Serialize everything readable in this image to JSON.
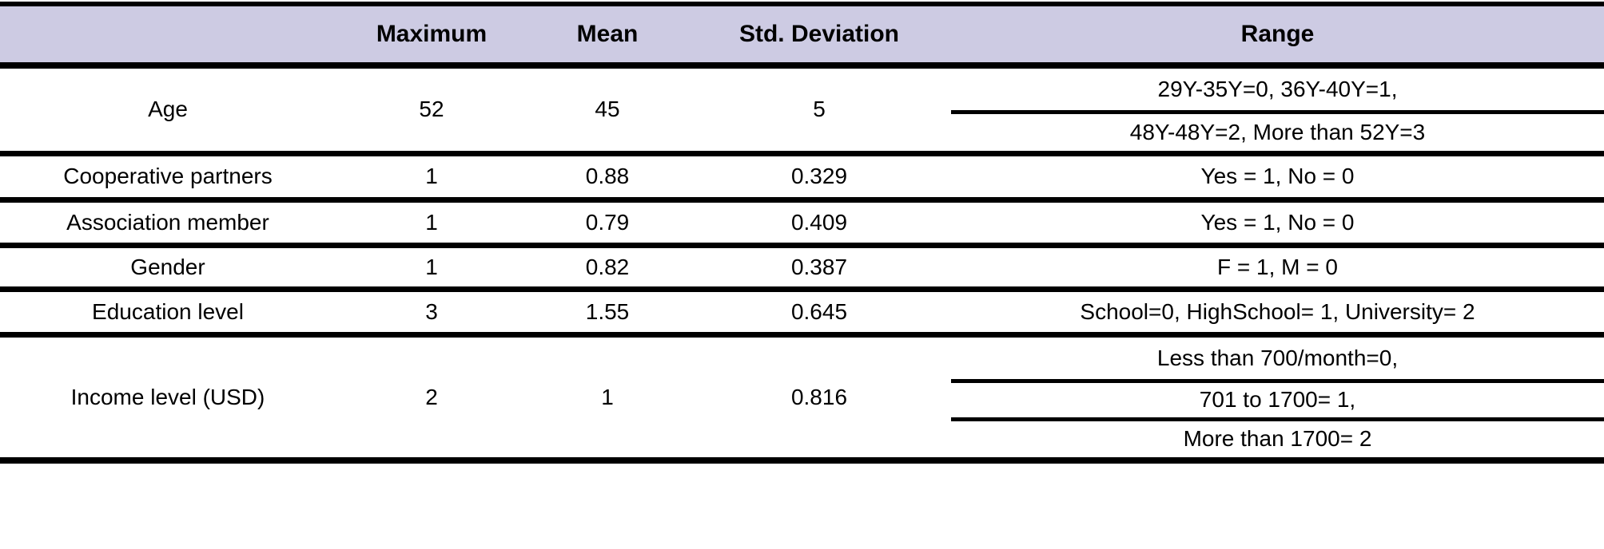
{
  "colors": {
    "header_bg": "#cdcbe3",
    "rule": "#000000",
    "text": "#000000"
  },
  "table": {
    "header": {
      "variable": "",
      "maximum": "Maximum",
      "mean": "Mean",
      "std_deviation": "Std. Deviation",
      "range": "Range"
    },
    "rows": [
      {
        "variable": "Age",
        "maximum": "52",
        "mean": "45",
        "std_deviation": "5",
        "range_lines": [
          "29Y-35Y=0, 36Y-40Y=1,",
          "48Y-48Y=2, More than 52Y=3"
        ]
      },
      {
        "variable": "Cooperative partners",
        "maximum": "1",
        "mean": "0.88",
        "std_deviation": "0.329",
        "range_lines": [
          "Yes = 1, No = 0"
        ]
      },
      {
        "variable": "Association member",
        "maximum": "1",
        "mean": "0.79",
        "std_deviation": "0.409",
        "range_lines": [
          "Yes = 1, No = 0"
        ]
      },
      {
        "variable": "Gender",
        "maximum": "1",
        "mean": "0.82",
        "std_deviation": "0.387",
        "range_lines": [
          "F = 1, M = 0"
        ]
      },
      {
        "variable": "Education level",
        "maximum": "3",
        "mean": "1.55",
        "std_deviation": "0.645",
        "range_lines": [
          "School=0, HighSchool= 1, University= 2"
        ]
      },
      {
        "variable": "Income level (USD)",
        "maximum": "2",
        "mean": "1",
        "std_deviation": "0.816",
        "range_lines": [
          "Less than 700/month=0,",
          "701 to 1700= 1,",
          "More than 1700= 2"
        ]
      }
    ]
  }
}
